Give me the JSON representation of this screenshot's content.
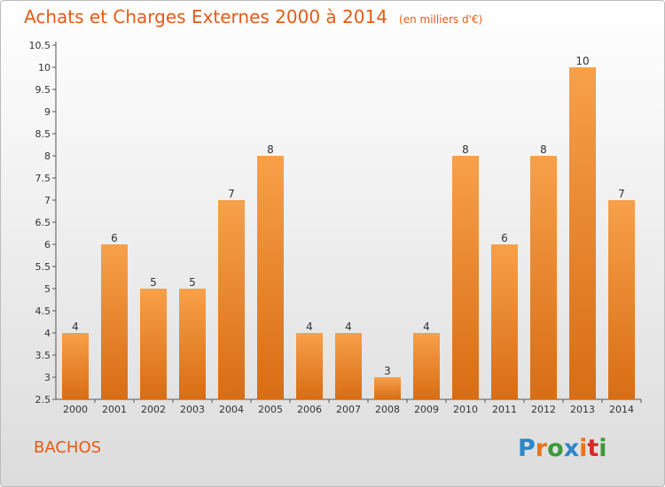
{
  "header": {
    "title": "Achats et Charges Externes 2000 à 2014",
    "unit": "(en milliers d'€)"
  },
  "footer": {
    "commune": "BACHOS",
    "logo_text": "Proxiti"
  },
  "colors": {
    "title": "#e65a14",
    "bar_top": "#f7a04a",
    "bar_bottom": "#d86d14",
    "logo": [
      "#2e86c8",
      "#e8751a",
      "#3a9a3a",
      "#2e86c8",
      "#e8751a",
      "#d82828",
      "#3a9a3a"
    ]
  },
  "chart_data": {
    "type": "bar",
    "title": "Achats et Charges Externes 2000 à 2014",
    "xlabel": "",
    "ylabel": "",
    "categories": [
      "2000",
      "2001",
      "2002",
      "2003",
      "2004",
      "2005",
      "2006",
      "2007",
      "2008",
      "2009",
      "2010",
      "2011",
      "2012",
      "2013",
      "2014"
    ],
    "values": [
      4,
      6,
      5,
      5,
      7,
      8,
      4,
      4,
      3,
      4,
      8,
      6,
      8,
      10,
      7
    ],
    "ylim": [
      2.5,
      10.5
    ],
    "yticks": [
      "2.5",
      "3",
      "3.5",
      "4",
      "4.5",
      "5",
      "5.5",
      "6",
      "6.5",
      "7",
      "7.5",
      "8",
      "8.5",
      "9",
      "9.5",
      "10",
      "10.5"
    ],
    "grid": false,
    "legend": "none"
  }
}
